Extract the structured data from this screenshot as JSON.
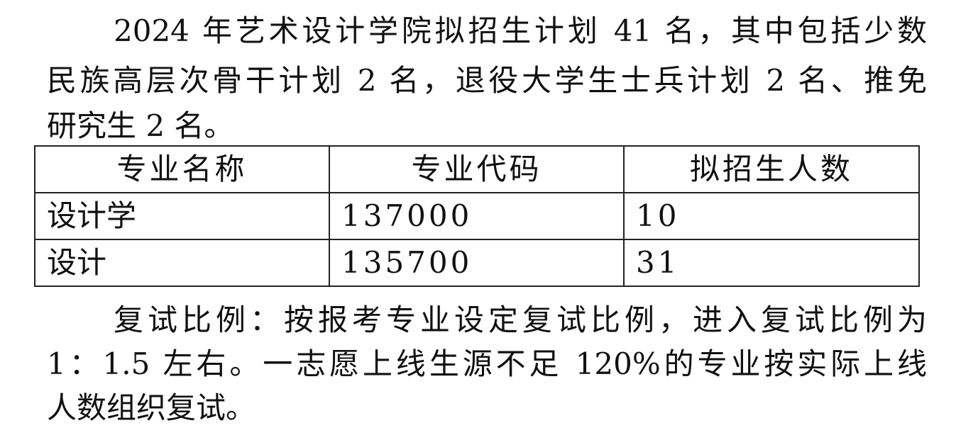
{
  "intro": {
    "lines": [
      "2024 年艺术设计学院拟招生计划 41 名，其中包括少数",
      "民族高层次骨干计划 2 名，退役大学生士兵计划 2 名、推免",
      "研究生 2 名。"
    ]
  },
  "table": {
    "headers": [
      "专业名称",
      "专业代码",
      "拟招生人数"
    ],
    "rows": [
      [
        "设计学",
        "137000",
        "10"
      ],
      [
        "设计",
        "135700",
        "31"
      ]
    ]
  },
  "retest": {
    "lines": [
      "复试比例：按报考专业设定复试比例，进入复试比例为",
      "1：1.5 左右。一志愿上线生源不足 120%的专业按实际上线",
      "人数组织复试。"
    ]
  }
}
